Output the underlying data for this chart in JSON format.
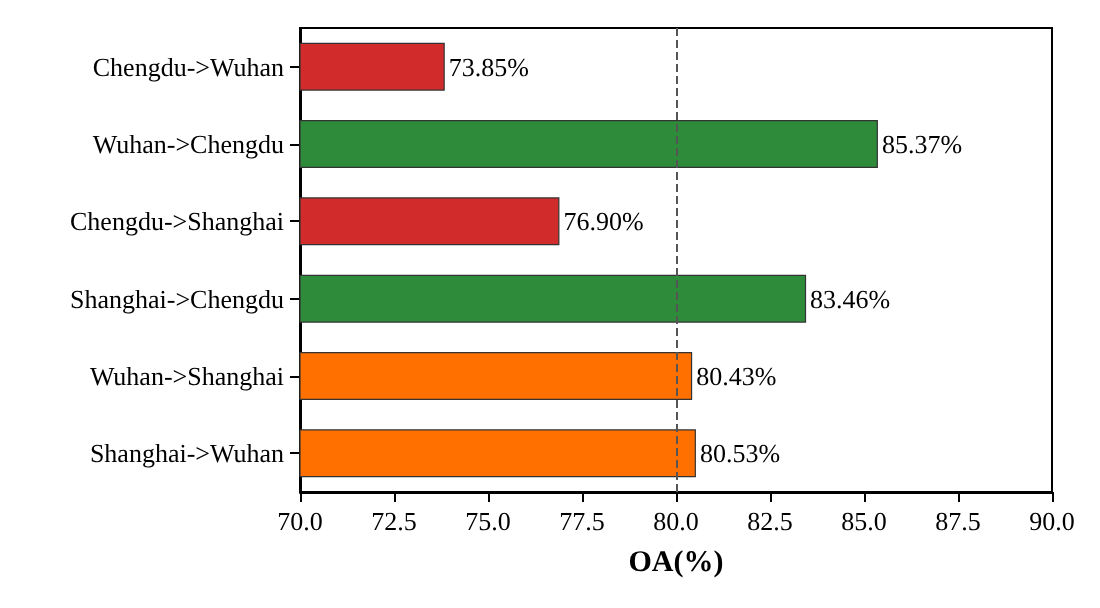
{
  "chart_data": {
    "type": "bar",
    "orientation": "horizontal",
    "xlabel": "OA(%)",
    "categories": [
      "Chengdu->Wuhan",
      "Wuhan->Chengdu",
      "Chengdu->Shanghai",
      "Shanghai->Chengdu",
      "Wuhan->Shanghai",
      "Shanghai->Wuhan"
    ],
    "values": [
      73.85,
      85.37,
      76.9,
      83.46,
      80.43,
      80.53
    ],
    "colors": [
      "#d12b2b",
      "#2e8b3a",
      "#d12b2b",
      "#2e8b3a",
      "#ff7000",
      "#ff7000"
    ],
    "value_labels": [
      "73.85%",
      "85.37%",
      "76.90%",
      "83.46%",
      "80.43%",
      "80.53%"
    ],
    "xlim": [
      70,
      90
    ],
    "xticks": [
      {
        "value": 70,
        "label": "70.0"
      },
      {
        "value": 72.5,
        "label": "72.5"
      },
      {
        "value": 75,
        "label": "75.0"
      },
      {
        "value": 77.5,
        "label": "77.5"
      },
      {
        "value": 80,
        "label": "80.0"
      },
      {
        "value": 82.5,
        "label": "82.5"
      },
      {
        "value": 85,
        "label": "85.0"
      },
      {
        "value": 87.5,
        "label": "87.5"
      },
      {
        "value": 90,
        "label": "90.0"
      }
    ],
    "ref_lines": [
      {
        "axis": "x",
        "value": 80,
        "color": "#555555",
        "line_style": "dashed"
      }
    ]
  }
}
